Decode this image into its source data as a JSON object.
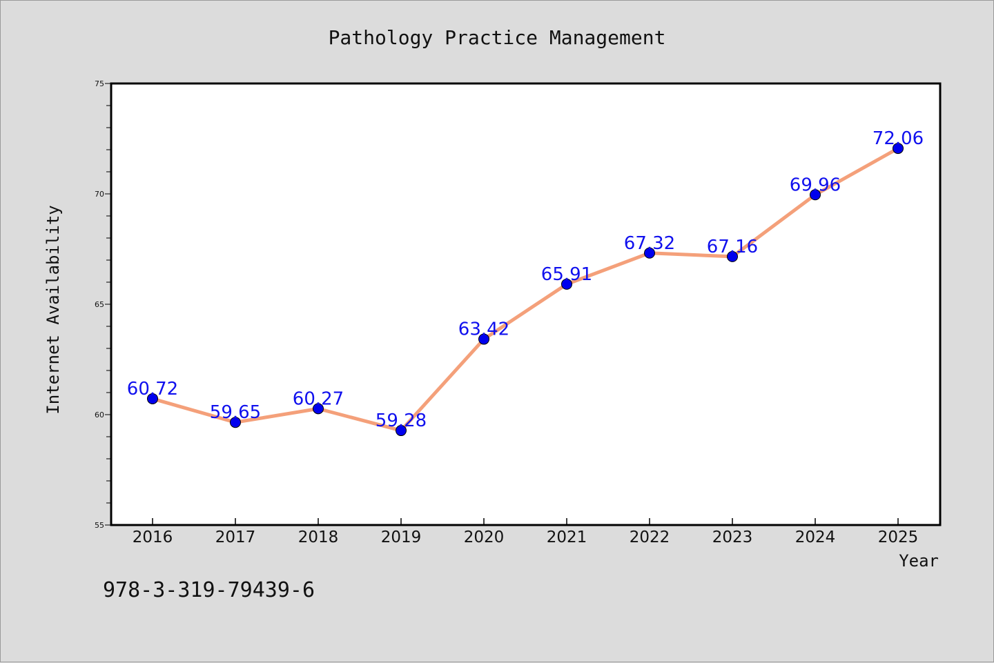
{
  "chart_data": {
    "type": "line",
    "title": "Pathology Practice Management",
    "xlabel": "Year",
    "ylabel": "Internet Availability",
    "categories": [
      "2016",
      "2017",
      "2018",
      "2019",
      "2020",
      "2021",
      "2022",
      "2023",
      "2024",
      "2025"
    ],
    "values": [
      60.72,
      59.65,
      60.27,
      59.28,
      63.42,
      65.91,
      67.32,
      67.16,
      69.96,
      72.06
    ],
    "data_labels": [
      "60.72",
      "59.65",
      "60.27",
      "59.28",
      "63.42",
      "65.91",
      "67.32",
      "67.16",
      "69.96",
      "72.06"
    ],
    "ylim": [
      55,
      75
    ],
    "yticks": [
      "55",
      "60",
      "65",
      "70",
      "75"
    ],
    "grid": false,
    "legend": "none",
    "line_color": "#f4a07a",
    "marker_color": "#0000ee",
    "label_color": "#1010ee"
  },
  "footer": {
    "text": "978-3-319-79439-6"
  }
}
